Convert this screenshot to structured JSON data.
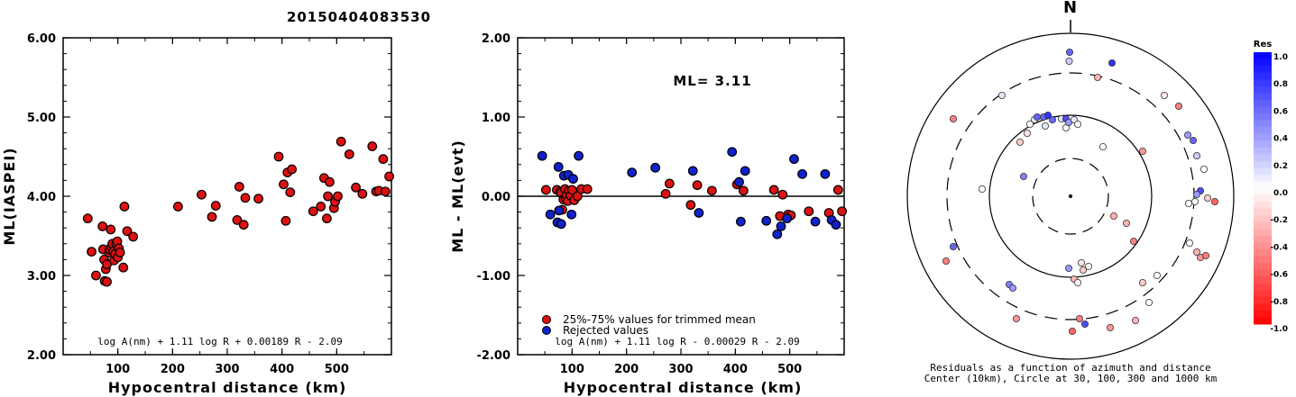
{
  "event_id": "20150404083530",
  "chart_data": [
    {
      "type": "scatter",
      "xlabel": "Hypocentral distance (km)",
      "ylabel": "ML(IASPEI)",
      "xlim": [
        0,
        600
      ],
      "ylim": [
        2.0,
        6.0
      ],
      "x_ticks": [
        "100",
        "200",
        "300",
        "400",
        "500"
      ],
      "y_ticks": [
        "2.00",
        "3.00",
        "4.00",
        "5.00",
        "6.00"
      ],
      "formula": "log A(nm) + 1.11 log R + 0.00189 R - 2.09",
      "series": [
        {
          "marker_color": "#dd1111",
          "points": [
            [
              45,
              3.72
            ],
            [
              52,
              3.3
            ],
            [
              60,
              3.0
            ],
            [
              72,
              3.62
            ],
            [
              73,
              3.33
            ],
            [
              75,
              3.2
            ],
            [
              78,
              3.08
            ],
            [
              80,
              3.14
            ],
            [
              76,
              2.93
            ],
            [
              80,
              2.92
            ],
            [
              84,
              3.29
            ],
            [
              85,
              3.33
            ],
            [
              87,
              3.58
            ],
            [
              88,
              3.36
            ],
            [
              90,
              3.4
            ],
            [
              92,
              3.3
            ],
            [
              93,
              3.19
            ],
            [
              95,
              3.27
            ],
            [
              97,
              3.4
            ],
            [
              99,
              3.43
            ],
            [
              100,
              3.23
            ],
            [
              102,
              3.34
            ],
            [
              104,
              3.29
            ],
            [
              110,
              3.1
            ],
            [
              112,
              3.87
            ],
            [
              117,
              3.56
            ],
            [
              128,
              3.49
            ],
            [
              210,
              3.87
            ],
            [
              253,
              4.02
            ],
            [
              272,
              3.74
            ],
            [
              279,
              3.88
            ],
            [
              318,
              3.7
            ],
            [
              322,
              4.12
            ],
            [
              330,
              3.64
            ],
            [
              333,
              3.98
            ],
            [
              357,
              3.97
            ],
            [
              394,
              4.5
            ],
            [
              403,
              4.15
            ],
            [
              407,
              3.69
            ],
            [
              410,
              4.3
            ],
            [
              415,
              4.05
            ],
            [
              418,
              4.34
            ],
            [
              457,
              3.81
            ],
            [
              471,
              3.87
            ],
            [
              477,
              4.23
            ],
            [
              482,
              3.72
            ],
            [
              484,
              4.0
            ],
            [
              487,
              4.18
            ],
            [
              495,
              3.85
            ],
            [
              497,
              3.93
            ],
            [
              502,
              4.0
            ],
            [
              508,
              4.69
            ],
            [
              523,
              4.53
            ],
            [
              535,
              4.11
            ],
            [
              547,
              4.03
            ],
            [
              565,
              4.63
            ],
            [
              572,
              4.06
            ],
            [
              577,
              4.07
            ],
            [
              585,
              4.47
            ],
            [
              589,
              4.06
            ],
            [
              596,
              4.25
            ]
          ]
        }
      ]
    },
    {
      "type": "scatter",
      "xlabel": "Hypocentral distance (km)",
      "ylabel": "ML - ML(evt)",
      "xlim": [
        0,
        600
      ],
      "ylim": [
        -2.0,
        2.0
      ],
      "x_ticks": [
        "100",
        "200",
        "300",
        "400",
        "500"
      ],
      "y_ticks": [
        "-2.00",
        "-1.00",
        "0.00",
        "1.00",
        "2.00"
      ],
      "ml_label": "ML= 3.11",
      "legend": [
        "25%-75% values for trimmed mean",
        "Rejected values"
      ],
      "formula": "log A(nm) + 1.11 log R - 0.00029 R - 2.09",
      "series": [
        {
          "name": "25%-75% values for trimmed mean",
          "marker_color": "#dd1111",
          "points": [
            [
              52,
              0.08
            ],
            [
              72,
              0.08
            ],
            [
              78,
              0.06
            ],
            [
              80,
              0.04
            ],
            [
              82,
              -0.17
            ],
            [
              84,
              -0.04
            ],
            [
              87,
              0.09
            ],
            [
              88,
              -0.02
            ],
            [
              90,
              0.01
            ],
            [
              92,
              -0.06
            ],
            [
              94,
              0.07
            ],
            [
              97,
              0.01
            ],
            [
              100,
              0.08
            ],
            [
              104,
              -0.05
            ],
            [
              110,
              0.0
            ],
            [
              117,
              0.09
            ],
            [
              128,
              0.09
            ],
            [
              272,
              0.03
            ],
            [
              279,
              0.16
            ],
            [
              318,
              -0.11
            ],
            [
              330,
              0.14
            ],
            [
              357,
              0.07
            ],
            [
              403,
              0.15
            ],
            [
              415,
              0.07
            ],
            [
              471,
              0.08
            ],
            [
              482,
              -0.25
            ],
            [
              487,
              0.02
            ],
            [
              497,
              -0.23
            ],
            [
              502,
              -0.24
            ],
            [
              535,
              -0.19
            ],
            [
              572,
              -0.21
            ],
            [
              589,
              0.08
            ],
            [
              596,
              -0.19
            ]
          ]
        },
        {
          "name": "Rejected values",
          "marker_color": "#1122cc",
          "points": [
            [
              45,
              0.51
            ],
            [
              60,
              -0.23
            ],
            [
              73,
              -0.33
            ],
            [
              75,
              0.37
            ],
            [
              76,
              -0.18
            ],
            [
              80,
              -0.35
            ],
            [
              85,
              0.26
            ],
            [
              93,
              0.27
            ],
            [
              99,
              -0.23
            ],
            [
              102,
              0.22
            ],
            [
              112,
              0.51
            ],
            [
              210,
              0.3
            ],
            [
              253,
              0.36
            ],
            [
              322,
              0.32
            ],
            [
              333,
              -0.21
            ],
            [
              394,
              0.56
            ],
            [
              407,
              0.18
            ],
            [
              410,
              -0.32
            ],
            [
              418,
              0.32
            ],
            [
              457,
              -0.31
            ],
            [
              477,
              -0.48
            ],
            [
              484,
              -0.38
            ],
            [
              495,
              -0.28
            ],
            [
              508,
              0.47
            ],
            [
              523,
              0.28
            ],
            [
              547,
              -0.32
            ],
            [
              565,
              0.28
            ],
            [
              577,
              -0.3
            ],
            [
              585,
              -0.36
            ]
          ]
        }
      ]
    },
    {
      "type": "polar_scatter",
      "north_label": "N",
      "caption": [
        "Residuals as a function of azimuth and distance",
        "Center (10km), Circle at 30, 100, 300 and 1000 km"
      ],
      "colorbar_title": "Res",
      "colorbar_ticks": [
        "1.0",
        "0.8",
        "0.6",
        "0.4",
        "0.2",
        "0.0",
        "-0.2",
        "-0.4",
        "-0.6",
        "-0.8",
        "-1.0"
      ],
      "points": [
        [
          -1,
          -160,
          0.6
        ],
        [
          -1.5,
          -150,
          0.2
        ],
        [
          46,
          -148,
          0.8
        ],
        [
          -76,
          -112,
          0.1
        ],
        [
          30,
          -132,
          -0.3
        ],
        [
          104,
          -112,
          -0.1
        ],
        [
          -130,
          -86,
          -0.5
        ],
        [
          -5,
          -76,
          0.0
        ],
        [
          120,
          -100,
          -0.5
        ],
        [
          -40,
          -85,
          0.1
        ],
        [
          -45,
          -80,
          0.0
        ],
        [
          -37,
          -88,
          0.6
        ],
        [
          -30,
          -88,
          0.6
        ],
        [
          -25,
          -90,
          0.8
        ],
        [
          -20,
          -85,
          0.6
        ],
        [
          -28,
          -78,
          0.1
        ],
        [
          -10,
          -86,
          0.1
        ],
        [
          -5,
          -86,
          0.7
        ],
        [
          -2,
          -82,
          0.4
        ],
        [
          4,
          -85,
          0.1
        ],
        [
          8,
          -80,
          0.0
        ],
        [
          -56,
          -60,
          -0.2
        ],
        [
          -48,
          -70,
          -0.1
        ],
        [
          36,
          -55,
          0.0
        ],
        [
          80,
          -50,
          -0.4
        ],
        [
          130,
          -68,
          0.4
        ],
        [
          136,
          -62,
          0.6
        ],
        [
          140,
          -45,
          0.2
        ],
        [
          148,
          -30,
          0.0
        ],
        [
          -98,
          -8,
          0.0
        ],
        [
          -52,
          -22,
          0.5
        ],
        [
          144,
          -6,
          0.7
        ],
        [
          140,
          -2,
          0.4
        ],
        [
          152,
          2,
          -0.2
        ],
        [
          160,
          6,
          -0.6
        ],
        [
          138,
          6,
          0.0
        ],
        [
          131,
          8,
          0.0
        ],
        [
          48,
          22,
          -0.3
        ],
        [
          62,
          30,
          -0.3
        ],
        [
          70,
          50,
          -0.5
        ],
        [
          -130,
          56,
          0.6
        ],
        [
          -138,
          72,
          -0.5
        ],
        [
          132,
          52,
          0.0
        ],
        [
          140,
          62,
          -0.3
        ],
        [
          144,
          68,
          -0.4
        ],
        [
          150,
          66,
          -0.5
        ],
        [
          96,
          88,
          0.0
        ],
        [
          87,
          118,
          0.0
        ],
        [
          80,
          96,
          -0.2
        ],
        [
          -68,
          98,
          0.5
        ],
        [
          -64,
          102,
          0.4
        ],
        [
          -2,
          80,
          0.4
        ],
        [
          12,
          74,
          -0.1
        ],
        [
          20,
          78,
          0.0
        ],
        [
          14,
          82,
          -0.2
        ],
        [
          4,
          92,
          -0.3
        ],
        [
          8,
          96,
          0.0
        ],
        [
          -60,
          136,
          -0.4
        ],
        [
          10,
          136,
          -0.5
        ],
        [
          16,
          142,
          0.7
        ],
        [
          2,
          150,
          -0.6
        ],
        [
          44,
          146,
          -0.4
        ],
        [
          72,
          138,
          -0.3
        ]
      ]
    }
  ]
}
